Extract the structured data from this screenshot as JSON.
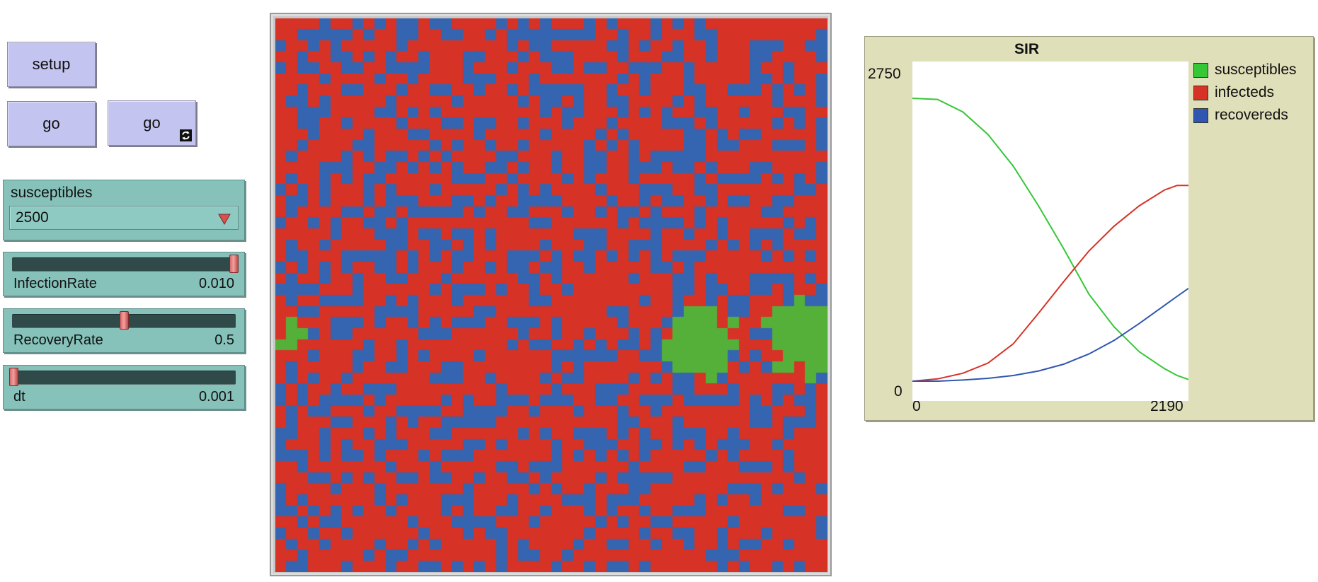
{
  "buttons": {
    "setup_label": "setup",
    "go_label": "go",
    "go_forever_label": "go"
  },
  "chooser": {
    "label": "susceptibles",
    "value": "2500"
  },
  "sliders": [
    {
      "name": "InfectionRate",
      "value": "0.010",
      "level": 1.0
    },
    {
      "name": "RecoveryRate",
      "value": "0.5",
      "level": 0.5
    },
    {
      "name": "dt",
      "value": "0.001",
      "level": 0.0
    }
  ],
  "world": {
    "grid_cols": 50,
    "grid_rows": 50,
    "colors": {
      "susceptible": "#55b03a",
      "infected": "#d63226",
      "recovered": "#3565b0"
    }
  },
  "plot": {
    "title": "SIR",
    "y_max_label": "2750",
    "y_min_label": "0",
    "x_min_label": "0",
    "x_max_label": "2190",
    "legend": [
      {
        "label": "susceptibles",
        "color": "#35c735"
      },
      {
        "label": "infecteds",
        "color": "#d63226"
      },
      {
        "label": "recovereds",
        "color": "#2f56b0"
      }
    ]
  },
  "chart_data": {
    "type": "line",
    "title": "SIR",
    "xlim": [
      0,
      2190
    ],
    "ylim": [
      0,
      2750
    ],
    "legend_position": "right",
    "series": [
      {
        "name": "susceptibles",
        "x": [
          0,
          200,
          400,
          600,
          800,
          1000,
          1200,
          1400,
          1600,
          1800,
          2000,
          2100,
          2190
        ],
        "values": [
          2500,
          2490,
          2380,
          2180,
          1900,
          1550,
          1170,
          770,
          480,
          260,
          110,
          50,
          15
        ]
      },
      {
        "name": "infecteds",
        "x": [
          0,
          200,
          400,
          600,
          800,
          1000,
          1200,
          1400,
          1600,
          1800,
          2000,
          2100,
          2190
        ],
        "values": [
          0,
          20,
          70,
          160,
          330,
          600,
          880,
          1150,
          1370,
          1550,
          1690,
          1730,
          1730
        ]
      },
      {
        "name": "recovereds",
        "x": [
          0,
          200,
          400,
          600,
          800,
          1000,
          1200,
          1400,
          1600,
          1800,
          2000,
          2100,
          2190
        ],
        "values": [
          0,
          0,
          10,
          25,
          50,
          90,
          150,
          240,
          360,
          510,
          670,
          750,
          820
        ]
      }
    ]
  }
}
